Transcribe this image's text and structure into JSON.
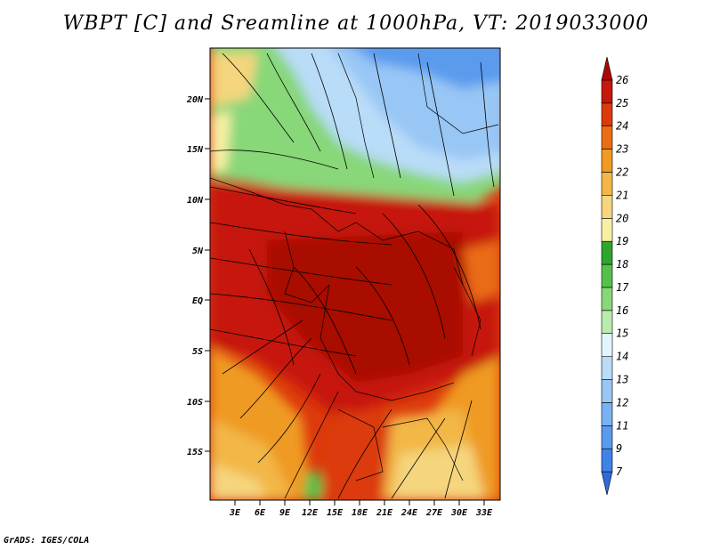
{
  "title": "WBPT [C] and Sreamline at 1000hPa, VT: 2019033000",
  "credit": "GrADS: IGES/COLA",
  "map": {
    "lat_labels": [
      "20N",
      "15N",
      "10N",
      "5N",
      "EQ",
      "5S",
      "10S",
      "15S"
    ],
    "lon_labels": [
      "3E",
      "6E",
      "9E",
      "12E",
      "15E",
      "18E",
      "21E",
      "24E",
      "27E",
      "30E",
      "33E"
    ],
    "lat_range": [
      -20,
      25
    ],
    "lon_range": [
      0,
      35
    ]
  },
  "colorbar": {
    "labels": [
      "7",
      "9",
      "11",
      "12",
      "13",
      "14",
      "15",
      "16",
      "17",
      "18",
      "19",
      "20",
      "21",
      "22",
      "23",
      "24",
      "25",
      "26"
    ],
    "colors": [
      "#2f6bdc",
      "#3f83e8",
      "#5a9bee",
      "#79b1f2",
      "#98c6f5",
      "#b9dcf8",
      "#e2f5ff",
      "#b9ebae",
      "#88d779",
      "#55c14c",
      "#2fa52e",
      "#f7f0a4",
      "#f5d57d",
      "#f2b747",
      "#ef9a22",
      "#ea6c14",
      "#dc3a0c",
      "#c61808",
      "#a80805"
    ]
  },
  "chart_data": {
    "type": "heatmap",
    "title": "WBPT [C] and Sreamline at 1000hPa, VT: 2019033000",
    "x_ticks": [
      "3E",
      "6E",
      "9E",
      "12E",
      "15E",
      "18E",
      "21E",
      "24E",
      "27E",
      "30E",
      "33E"
    ],
    "y_ticks": [
      "20N",
      "15N",
      "10N",
      "5N",
      "EQ",
      "5S",
      "10S",
      "15S"
    ],
    "colorbar_levels": [
      7,
      9,
      11,
      12,
      13,
      14,
      15,
      16,
      17,
      18,
      19,
      20,
      21,
      22,
      23,
      24,
      25,
      26
    ]
  }
}
